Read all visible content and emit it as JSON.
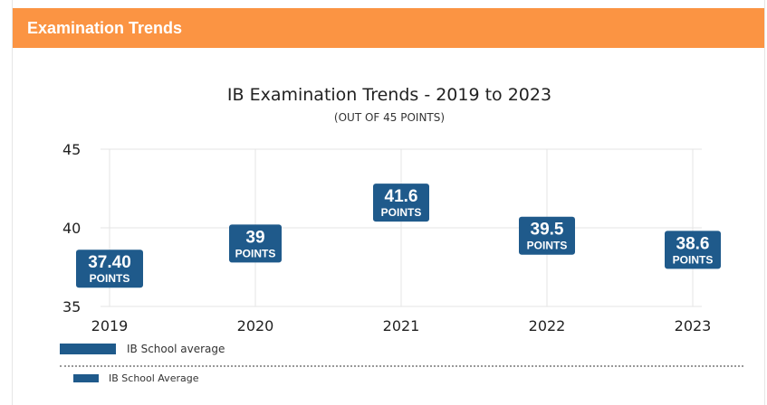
{
  "header": {
    "title": "Examination Trends"
  },
  "chart_data": {
    "type": "line",
    "title": "IB Examination Trends - 2019 to 2023",
    "subtitle": "(OUT OF 45 POINTS)",
    "categories": [
      "2019",
      "2020",
      "2021",
      "2022",
      "2023"
    ],
    "series": [
      {
        "name": "IB School average",
        "values": [
          37.4,
          39,
          41.6,
          39.5,
          38.6
        ],
        "labels": [
          "37.40",
          "39",
          "41.6",
          "39.5",
          "38.6"
        ],
        "unit_label": "POINTS"
      }
    ],
    "ylim": [
      35,
      45
    ],
    "yticks": [
      "35",
      "40",
      "45"
    ],
    "grid": true,
    "color": "#1f5a8b"
  },
  "legend": {
    "primary": "IB School average",
    "secondary": "IB School Average"
  }
}
